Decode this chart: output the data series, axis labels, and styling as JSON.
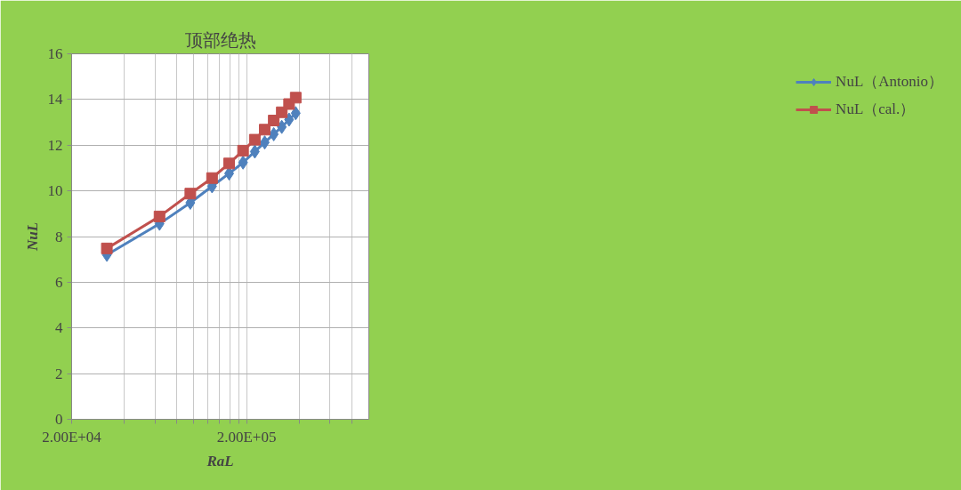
{
  "chart_data": {
    "type": "line",
    "title": "顶部绝热",
    "xlabel": "RaL",
    "ylabel": "NuL",
    "log": "x",
    "grid": true,
    "legend": "right",
    "xlim": [
      20000,
      1000000
    ],
    "xticks": [
      {
        "value": 20000,
        "label": "2.00E+04"
      },
      {
        "value": 40000,
        "label": null
      },
      {
        "value": 60000,
        "label": null
      },
      {
        "value": 80000,
        "label": null
      },
      {
        "value": 100000,
        "label": null
      },
      {
        "value": 120000,
        "label": null
      },
      {
        "value": 140000,
        "label": null
      },
      {
        "value": 160000,
        "label": null
      },
      {
        "value": 180000,
        "label": null
      },
      {
        "value": 200000,
        "label": "2.00E+05"
      },
      {
        "value": 400000,
        "label": null
      },
      {
        "value": 600000,
        "label": null
      },
      {
        "value": 800000,
        "label": null
      }
    ],
    "ylim": [
      0,
      16
    ],
    "yticks": [
      0,
      2,
      4,
      6,
      8,
      10,
      12,
      14,
      16
    ],
    "x": [
      31800,
      63600,
      95400,
      127000,
      159000,
      191000,
      223000,
      254000,
      286000,
      318000,
      350000,
      382000
    ],
    "series": [
      {
        "name": "NuL（Antonio）",
        "color": "#4f81bd",
        "marker": "diamond",
        "values": [
          7.2,
          8.56,
          9.48,
          10.2,
          10.76,
          11.24,
          11.72,
          12.12,
          12.48,
          12.8,
          13.12,
          13.4
        ]
      },
      {
        "name": "NuL（cal.）",
        "color": "#c0504d",
        "marker": "square",
        "values": [
          7.48,
          8.88,
          9.88,
          10.56,
          11.2,
          11.76,
          12.24,
          12.68,
          13.08,
          13.44,
          13.8,
          14.08
        ]
      }
    ]
  }
}
